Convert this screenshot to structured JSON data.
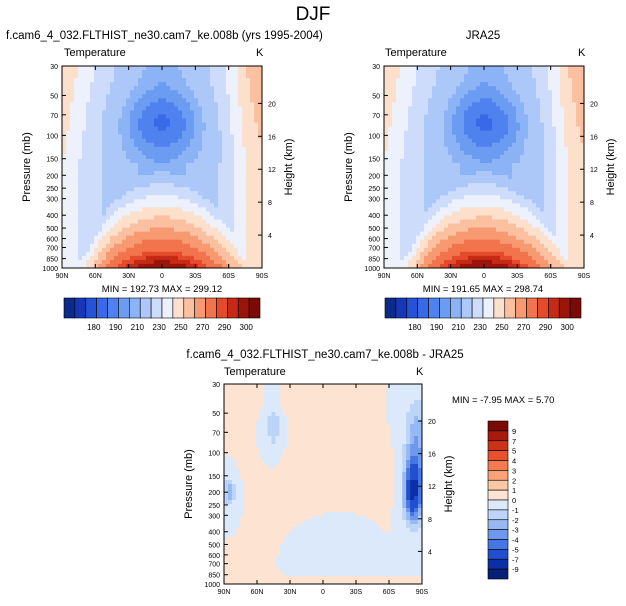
{
  "title": "DJF",
  "panels": [
    {
      "title": "f.cam6_4_032.FLTHIST_ne30.cam7_ke.008b (yrs 1995-2004)",
      "var_label": "Temperature",
      "unit": "K",
      "ylabel": "Pressure (mb)",
      "ylabel_right": "Height (km)",
      "minmax": "MIN = 192.73  MAX = 299.12"
    },
    {
      "title": "JRA25",
      "var_label": "Temperature",
      "unit": "K",
      "ylabel": "Pressure (mb)",
      "ylabel_right": "Height (km)",
      "minmax": "MIN = 191.65  MAX = 298.74"
    },
    {
      "title": "f.cam6_4_032.FLTHIST_ne30.cam7_ke.008b - JRA25",
      "var_label": "Temperature",
      "unit": "K",
      "ylabel": "Pressure (mb)",
      "ylabel_right": "Height (km)",
      "minmax": "MIN = -7.95  MAX =  5.70"
    }
  ],
  "chart_data": [
    {
      "type": "heatmap",
      "title": "f.cam6_4_032.FLTHIST_ne30.cam7_ke.008b (yrs 1995-2004)",
      "subtitle": "Temperature",
      "xlabel": "",
      "ylabel": "Pressure (mb)",
      "ylabel_right": "Height (km)",
      "x_ticks": [
        "90N",
        "60N",
        "30N",
        "0",
        "30S",
        "60S",
        "90S"
      ],
      "y_ticks": [
        "30",
        "50",
        "70",
        "100",
        "150",
        "200",
        "250",
        "300",
        "400",
        "500",
        "600",
        "700",
        "850",
        "1000"
      ],
      "y_ticks_right": [
        "20",
        "16",
        "12",
        "8",
        "4"
      ],
      "y_scale": "log",
      "ylim": [
        1000,
        30
      ],
      "min": 192.73,
      "max": 299.12,
      "colorbar_ticks": [
        "180",
        "190",
        "210",
        "230",
        "250",
        "270",
        "290",
        "300"
      ]
    },
    {
      "type": "heatmap",
      "title": "JRA25",
      "subtitle": "Temperature",
      "xlabel": "",
      "ylabel": "Pressure (mb)",
      "ylabel_right": "Height (km)",
      "x_ticks": [
        "90N",
        "60N",
        "30N",
        "0",
        "30S",
        "60S",
        "90S"
      ],
      "y_ticks": [
        "30",
        "50",
        "70",
        "100",
        "150",
        "200",
        "250",
        "300",
        "400",
        "500",
        "600",
        "700",
        "850",
        "1000"
      ],
      "y_ticks_right": [
        "20",
        "16",
        "12",
        "8",
        "4"
      ],
      "y_scale": "log",
      "ylim": [
        1000,
        30
      ],
      "min": 191.65,
      "max": 298.74,
      "colorbar_ticks": [
        "180",
        "190",
        "210",
        "230",
        "250",
        "270",
        "290",
        "300"
      ]
    },
    {
      "type": "heatmap",
      "title": "f.cam6_4_032.FLTHIST_ne30.cam7_ke.008b - JRA25",
      "subtitle": "Temperature",
      "xlabel": "",
      "ylabel": "Pressure (mb)",
      "ylabel_right": "Height (km)",
      "x_ticks": [
        "90N",
        "60N",
        "30N",
        "0",
        "30S",
        "60S",
        "90S"
      ],
      "y_ticks": [
        "30",
        "50",
        "70",
        "100",
        "150",
        "200",
        "250",
        "300",
        "400",
        "500",
        "600",
        "700",
        "850",
        "1000"
      ],
      "y_ticks_right": [
        "20",
        "16",
        "12",
        "8",
        "4"
      ],
      "y_scale": "log",
      "ylim": [
        1000,
        30
      ],
      "min": -7.95,
      "max": 5.7,
      "colorbar_ticks": [
        "9",
        "7",
        "5",
        "4",
        "3",
        "2",
        "1",
        "0",
        "-1",
        "-2",
        "-3",
        "-4",
        "-5",
        "-7",
        "-9"
      ]
    }
  ],
  "palettes": {
    "temp_colors": [
      "#0a2a8c",
      "#1638b8",
      "#2552d6",
      "#3869e6",
      "#4f82ee",
      "#6b9cf2",
      "#8bb3f5",
      "#acc8f8",
      "#cddcfa",
      "#ecf1fc",
      "#fde0cc",
      "#fbc0a0",
      "#f79a72",
      "#f2744c",
      "#e54a2a",
      "#c42a15",
      "#9c140a",
      "#7a0a05"
    ],
    "diff_colors": [
      "#7a0a05",
      "#a81a0d",
      "#cc3218",
      "#e8512c",
      "#f47a50",
      "#f9a276",
      "#fbc7a5",
      "#fde4d2",
      "#dce9fb",
      "#bcd4f8",
      "#96b9f3",
      "#6e98ec",
      "#4676e3",
      "#2150cf",
      "#0b30a6",
      "#061f78"
    ]
  }
}
